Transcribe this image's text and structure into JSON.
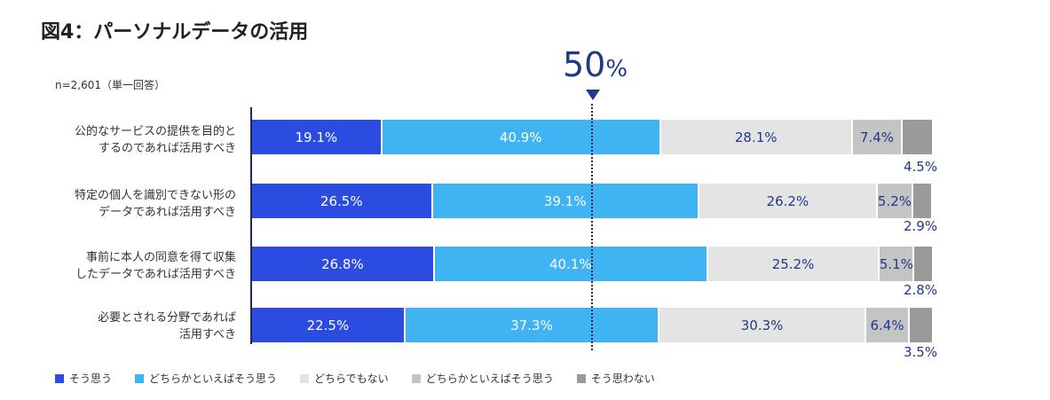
{
  "chart_data": {
    "type": "bar",
    "orientation": "horizontal",
    "stacked": true,
    "title": "図4：パーソナルデータの活用",
    "note": "n=2,601（単一回答）",
    "reference_line": {
      "value": 50,
      "number_label": "50",
      "unit_label": "%"
    },
    "xlim": [
      0,
      100
    ],
    "categories": [
      [
        "公的なサービスの提供を目的と",
        "するのであれば活用すべき"
      ],
      [
        "特定の個人を識別できない形の",
        "データであれば活用すべき"
      ],
      [
        "事前に本人の同意を得て収集",
        "したデータであれば活用すべき"
      ],
      [
        "必要とされる分野であれば",
        "活用すべき"
      ]
    ],
    "series": [
      {
        "name": "そう思う",
        "color": "#2c4be0",
        "values": [
          19.1,
          26.5,
          26.8,
          22.5
        ],
        "labels": [
          "19.1%",
          "26.5%",
          "26.8%",
          "22.5%"
        ]
      },
      {
        "name": "どちらかといえばそう思う",
        "color": "#40b4f3",
        "values": [
          40.9,
          39.1,
          40.1,
          37.3
        ],
        "labels": [
          "40.9%",
          "39.1%",
          "40.1%",
          "37.3%"
        ]
      },
      {
        "name": "どちらでもない",
        "color": "#e4e4e4",
        "values": [
          28.1,
          26.2,
          25.2,
          30.3
        ],
        "labels": [
          "28.1%",
          "26.2%",
          "25.2%",
          "30.3%"
        ]
      },
      {
        "name": "どちらかといえばそう思う",
        "color": "#c4c4c4",
        "values": [
          7.4,
          5.2,
          5.1,
          6.4
        ],
        "labels": [
          "7.4%",
          "5.2%",
          "5.1%",
          "6.4%"
        ]
      },
      {
        "name": "そう思わない",
        "color": "#9a9a9a",
        "values": [
          4.5,
          2.9,
          2.8,
          3.5
        ],
        "labels": [
          "4.5%",
          "2.9%",
          "2.8%",
          "3.5%"
        ]
      }
    ],
    "legend_position": "bottom"
  }
}
